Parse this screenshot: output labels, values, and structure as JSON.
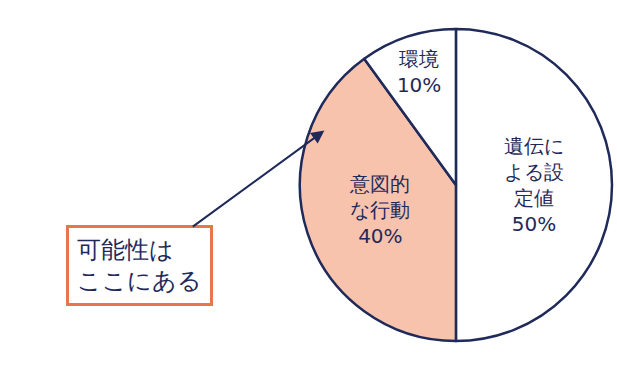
{
  "chart_data": {
    "type": "pie",
    "categories": [
      "遺伝による設定値",
      "意図的な行動",
      "環境"
    ],
    "values": [
      50,
      40,
      10
    ],
    "value_labels": [
      "50%",
      "40%",
      "10%"
    ],
    "colors": [
      "#ffffff",
      "#f8c3ad",
      "#ffffff"
    ],
    "data_labels": true,
    "annotations": [
      {
        "text_lines": [
          "可能性は",
          "ここにある"
        ],
        "target": "意図的な行動"
      }
    ]
  }
}
